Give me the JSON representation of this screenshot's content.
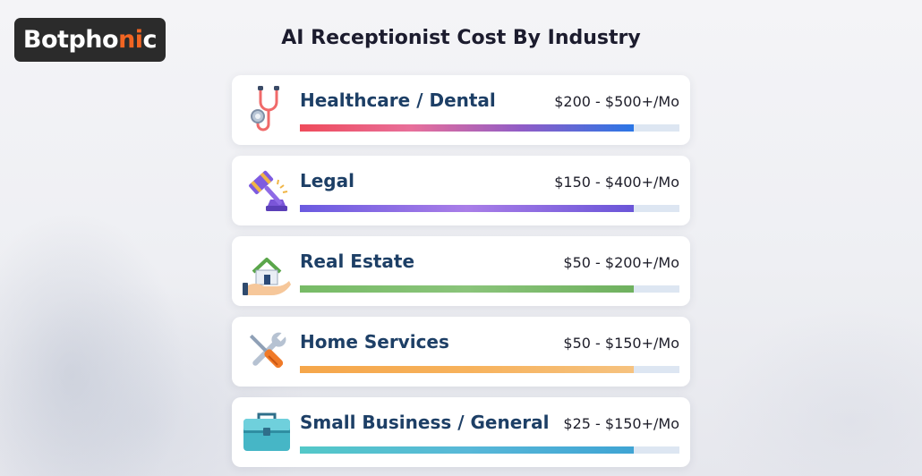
{
  "brand": {
    "name_main": "Botpho",
    "name_accent": "ni",
    "name_tail": "c"
  },
  "title": "AI Receptionist Cost By Industry",
  "rows": [
    {
      "label": "Healthcare / Dental",
      "price": "$200 - $500+/Mo",
      "icon": "stethoscope-icon",
      "level": 0.88,
      "gradient": [
        "#ef4b5b",
        "#e86f9a",
        "#8f5cc7",
        "#2a76e6"
      ]
    },
    {
      "label": "Legal",
      "price": "$150 - $400+/Mo",
      "icon": "gavel-icon",
      "level": 0.88,
      "gradient": [
        "#6a5ae0",
        "#a97ee8",
        "#6a55d8"
      ]
    },
    {
      "label": "Real Estate",
      "price": "$50 - $200+/Mo",
      "icon": "house-in-hand-icon",
      "level": 0.88,
      "gradient": [
        "#77bb66",
        "#8ac47a",
        "#6fb15f"
      ]
    },
    {
      "label": "Home Services",
      "price": "$50 - $150+/Mo",
      "icon": "wrench-screwdriver-icon",
      "level": 0.88,
      "gradient": [
        "#f5a64a",
        "#f7b25c",
        "#f6c27f"
      ]
    },
    {
      "label": "Small Business / General",
      "price": "$25 - $150+/Mo",
      "icon": "briefcase-icon",
      "level": 0.88,
      "gradient": [
        "#53c8c8",
        "#58b8d8",
        "#3fa4d4"
      ]
    }
  ]
}
